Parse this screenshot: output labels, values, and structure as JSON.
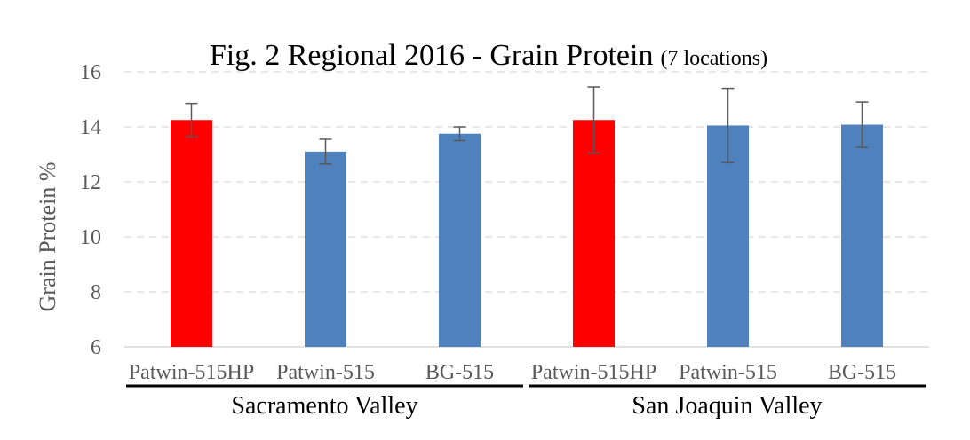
{
  "chart_data": {
    "type": "bar",
    "title": "Fig. 2 Regional 2016 - Grain Protein",
    "title_note": "(7 locations)",
    "ylabel": "Grain Protein %",
    "xlabel": "",
    "ylim": [
      6,
      16
    ],
    "yticks": [
      6,
      8,
      10,
      12,
      14,
      16
    ],
    "grid": "horizontal-dashed",
    "categories": [
      "Patwin-515HP",
      "Patwin-515",
      "BG-515",
      "Patwin-515HP",
      "Patwin-515",
      "BG-515"
    ],
    "values": [
      14.25,
      13.1,
      13.75,
      14.25,
      14.05,
      14.08
    ],
    "error_low": [
      13.65,
      12.65,
      13.5,
      13.05,
      12.7,
      13.25
    ],
    "error_high": [
      14.85,
      13.55,
      14.0,
      15.45,
      15.4,
      14.9
    ],
    "bar_colors": [
      "#ff0000",
      "#4f81bd",
      "#4f81bd",
      "#ff0000",
      "#4f81bd",
      "#4f81bd"
    ],
    "groups": [
      {
        "name": "Sacramento Valley",
        "categories": [
          0,
          1,
          2
        ]
      },
      {
        "name": "San Joaquin Valley",
        "categories": [
          3,
          4,
          5
        ]
      }
    ],
    "colors": {
      "highlight": "#ff0000",
      "standard": "#4f81bd",
      "error_bar": "#595959",
      "grid": "#d9d9d9",
      "axis": "#d9d9d9",
      "text": "#595959"
    }
  }
}
